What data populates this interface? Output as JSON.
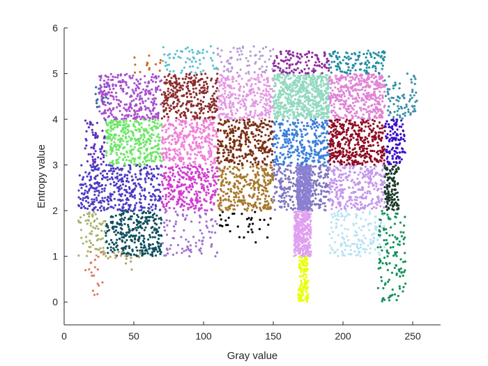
{
  "chart_data": {
    "type": "scatter",
    "title": "",
    "xlabel": "Gray value",
    "ylabel": "Entropy value",
    "xlim": [
      0,
      270
    ],
    "ylim": [
      -0.5,
      6
    ],
    "xticks": [
      0,
      50,
      100,
      150,
      200,
      250
    ],
    "yticks": [
      0,
      1,
      2,
      3,
      4,
      5,
      6
    ],
    "grid": false,
    "legend": "none",
    "series": [
      {
        "color": "#a9b26e",
        "x": [
          10,
          30
        ],
        "y": [
          1.0,
          2.0
        ],
        "n": 70
      },
      {
        "color": "#0e4f5e",
        "x": [
          30,
          70
        ],
        "y": [
          1.0,
          2.0
        ],
        "n": 300
      },
      {
        "color": "#e07a5f",
        "x": [
          15,
          30
        ],
        "y": [
          0.15,
          1.1
        ],
        "n": 20
      },
      {
        "color": "#b7a06a",
        "x": [
          30,
          55
        ],
        "y": [
          0.7,
          1.1
        ],
        "n": 18
      },
      {
        "color": "#4c3bc3",
        "x": [
          10,
          70
        ],
        "y": [
          2.0,
          3.0
        ],
        "n": 400
      },
      {
        "color": "#5d2fbf",
        "x": [
          15,
          30
        ],
        "y": [
          3.0,
          4.0
        ],
        "n": 60
      },
      {
        "color": "#6ee667",
        "x": [
          30,
          70
        ],
        "y": [
          3.0,
          4.0
        ],
        "n": 350
      },
      {
        "color": "#2e6ca4",
        "x": [
          22,
          32
        ],
        "y": [
          4.2,
          4.8
        ],
        "n": 20
      },
      {
        "color": "#a84fcc",
        "x": [
          25,
          70
        ],
        "y": [
          4.0,
          5.0
        ],
        "n": 300
      },
      {
        "color": "#d2691e",
        "x": [
          50,
          70
        ],
        "y": [
          5.0,
          5.4
        ],
        "n": 15
      },
      {
        "color": "#a070d0",
        "x": [
          70,
          110
        ],
        "y": [
          1.0,
          2.0
        ],
        "n": 90
      },
      {
        "color": "#d03fd0",
        "x": [
          70,
          110
        ],
        "y": [
          2.0,
          3.0
        ],
        "n": 300
      },
      {
        "color": "#f07fd8",
        "x": [
          70,
          110
        ],
        "y": [
          3.0,
          4.0
        ],
        "n": 300
      },
      {
        "color": "#8b2d2d",
        "x": [
          70,
          110
        ],
        "y": [
          4.0,
          5.0
        ],
        "n": 300
      },
      {
        "color": "#5bc0d0",
        "x": [
          70,
          110
        ],
        "y": [
          5.0,
          5.6
        ],
        "n": 60
      },
      {
        "color": "#000000",
        "x": [
          110,
          150
        ],
        "y": [
          1.3,
          2.0
        ],
        "n": 35
      },
      {
        "color": "#a6782c",
        "x": [
          110,
          150
        ],
        "y": [
          2.0,
          3.0
        ],
        "n": 300
      },
      {
        "color": "#7a2f14",
        "x": [
          110,
          150
        ],
        "y": [
          3.0,
          4.0
        ],
        "n": 300
      },
      {
        "color": "#e397e3",
        "x": [
          110,
          150
        ],
        "y": [
          4.0,
          5.0
        ],
        "n": 300
      },
      {
        "color": "#b89bd6",
        "x": [
          110,
          150
        ],
        "y": [
          5.0,
          5.6
        ],
        "n": 70
      },
      {
        "color": "#7e75c0",
        "x": [
          150,
          190
        ],
        "y": [
          2.0,
          3.0
        ],
        "n": 300
      },
      {
        "color": "#8a80d0",
        "x": [
          167,
          177
        ],
        "y": [
          2.0,
          3.0
        ],
        "n": 400
      },
      {
        "color": "#e0a0f0",
        "x": [
          165,
          177
        ],
        "y": [
          1.0,
          2.0
        ],
        "n": 350
      },
      {
        "color": "#e8ff00",
        "x": [
          168,
          175
        ],
        "y": [
          0.0,
          1.0
        ],
        "n": 120
      },
      {
        "color": "#3a7fdc",
        "x": [
          150,
          190
        ],
        "y": [
          3.0,
          4.0
        ],
        "n": 300
      },
      {
        "color": "#93d9c0",
        "x": [
          150,
          190
        ],
        "y": [
          4.0,
          5.0
        ],
        "n": 600
      },
      {
        "color": "#8e2a9e",
        "x": [
          150,
          190
        ],
        "y": [
          5.0,
          5.5
        ],
        "n": 120
      },
      {
        "color": "#b7e2f3",
        "x": [
          190,
          230
        ],
        "y": [
          1.0,
          2.0
        ],
        "n": 150
      },
      {
        "color": "#c497eb",
        "x": [
          190,
          230
        ],
        "y": [
          2.0,
          3.0
        ],
        "n": 300
      },
      {
        "color": "#8f0b23",
        "x": [
          190,
          230
        ],
        "y": [
          3.0,
          4.0
        ],
        "n": 400
      },
      {
        "color": "#df84d6",
        "x": [
          190,
          230
        ],
        "y": [
          4.0,
          5.0
        ],
        "n": 400
      },
      {
        "color": "#208fa0",
        "x": [
          190,
          230
        ],
        "y": [
          5.0,
          5.5
        ],
        "n": 120
      },
      {
        "color": "#12915a",
        "x": [
          225,
          245
        ],
        "y": [
          0.0,
          2.0
        ],
        "n": 120
      },
      {
        "color": "#1a3a2a",
        "x": [
          230,
          240
        ],
        "y": [
          2.0,
          3.0
        ],
        "n": 120
      },
      {
        "color": "#3b10c7",
        "x": [
          230,
          245
        ],
        "y": [
          3.0,
          4.0
        ],
        "n": 120
      },
      {
        "color": "#3a8fa8",
        "x": [
          230,
          253
        ],
        "y": [
          4.0,
          5.0
        ],
        "n": 80
      }
    ]
  }
}
